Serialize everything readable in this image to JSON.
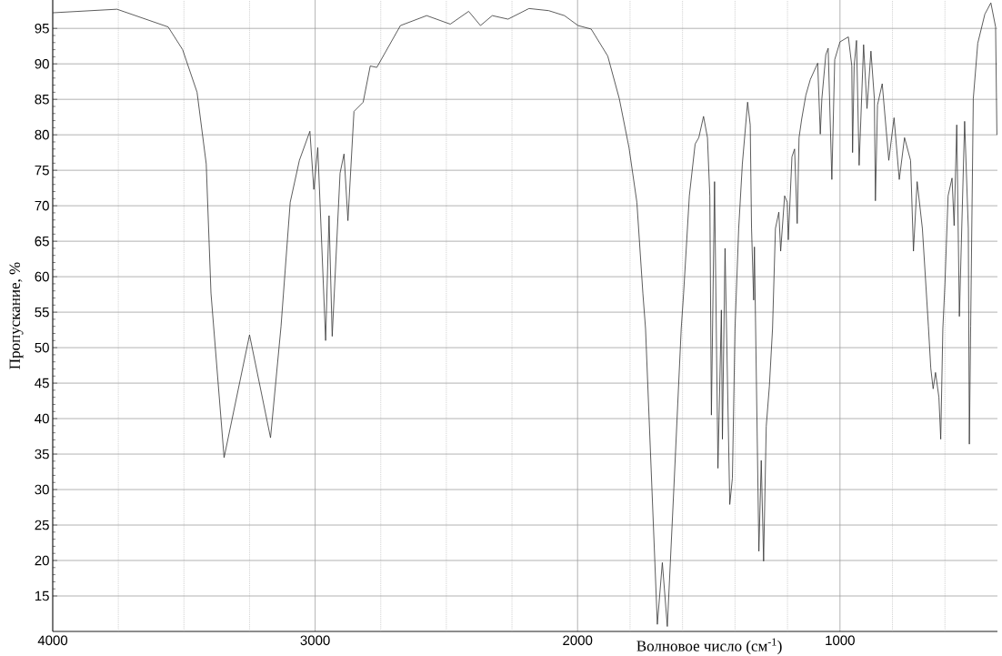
{
  "chart_data": {
    "type": "line",
    "xlabel": "Волновое число (см$^{-1}$)",
    "ylabel": "Пропускание, %",
    "xlim": [
      4000,
      400
    ],
    "ylim": [
      10,
      99
    ],
    "xticks": [
      4000,
      {
        "value": 3750,
        "label": null
      },
      {
        "value": 3500,
        "label": null
      },
      {
        "value": 3250,
        "label": null
      },
      3000,
      {
        "value": 2750,
        "label": null
      },
      {
        "value": 2500,
        "label": null
      },
      {
        "value": 2250,
        "label": null
      },
      2000,
      {
        "value": 1800,
        "label": null
      },
      {
        "value": 1600,
        "label": null
      },
      {
        "value": 1400,
        "label": null
      },
      {
        "value": 1200,
        "label": null
      },
      1000,
      {
        "value": 800,
        "label": null
      },
      {
        "value": 600,
        "label": null
      }
    ],
    "yticks": [
      15,
      20,
      25,
      30,
      35,
      40,
      45,
      50,
      55,
      60,
      65,
      70,
      75,
      80,
      85,
      90,
      95
    ],
    "grid": true,
    "color": "#333333",
    "x": [
      4000,
      3755,
      3560,
      3505,
      3450,
      3415,
      3397,
      3347,
      3250,
      3170,
      3130,
      3095,
      3060,
      3020,
      3005,
      2990,
      2960,
      2947,
      2935,
      2905,
      2890,
      2875,
      2852,
      2817,
      2790,
      2765,
      2675,
      2575,
      2485,
      2415,
      2370,
      2325,
      2265,
      2185,
      2110,
      2050,
      1998,
      1948,
      1885,
      1841,
      1804,
      1774,
      1751,
      1741,
      1696,
      1677,
      1658,
      1633,
      1605,
      1596,
      1574,
      1552,
      1538,
      1520,
      1505,
      1496,
      1490,
      1478,
      1465,
      1452,
      1448,
      1438,
      1420,
      1410,
      1400,
      1386,
      1372,
      1352,
      1342,
      1337,
      1329,
      1326,
      1309,
      1300,
      1291,
      1281,
      1269,
      1257,
      1246,
      1233,
      1226,
      1211,
      1201,
      1197,
      1183,
      1173,
      1163,
      1156,
      1146,
      1130,
      1113,
      1085,
      1075,
      1069,
      1054,
      1045,
      1031,
      1020,
      1000,
      968,
      955,
      952,
      946,
      937,
      927,
      910,
      897,
      882,
      869,
      865,
      857,
      839,
      814,
      794,
      774,
      754,
      731,
      720,
      706,
      686,
      663,
      654,
      645,
      636,
      623,
      616,
      608,
      600,
      588,
      573,
      565,
      555,
      545,
      525,
      511,
      507,
      502,
      492,
      475,
      448,
      425,
      407,
      402
    ],
    "values": [
      97.2,
      97.7,
      95.2,
      92.0,
      86.0,
      75.9,
      57.7,
      34.5,
      51.8,
      37.3,
      53.0,
      70.5,
      76.4,
      80.5,
      72.3,
      78.2,
      51.0,
      68.6,
      51.6,
      74.6,
      77.3,
      67.9,
      83.3,
      84.6,
      89.7,
      89.5,
      95.4,
      96.8,
      95.6,
      97.4,
      95.4,
      96.8,
      96.3,
      97.8,
      97.5,
      96.8,
      95.4,
      94.9,
      91.1,
      85.1,
      78.2,
      70.5,
      57.6,
      52.7,
      11.0,
      19.7,
      10.7,
      30.2,
      52.7,
      57.6,
      71.4,
      78.7,
      79.6,
      82.6,
      79.6,
      71.4,
      40.5,
      73.4,
      33.0,
      55.3,
      37.1,
      64.0,
      27.9,
      31.6,
      52.7,
      66.8,
      75.9,
      84.6,
      81.4,
      66.8,
      56.7,
      64.2,
      21.3,
      34.1,
      19.9,
      38.9,
      44.6,
      52.7,
      66.8,
      69.1,
      63.6,
      71.4,
      70.5,
      65.2,
      76.9,
      78.0,
      67.5,
      79.6,
      82.2,
      85.6,
      87.8,
      90.1,
      80.1,
      85.1,
      91.3,
      92.2,
      73.7,
      90.6,
      93.1,
      93.8,
      89.7,
      77.5,
      89.7,
      93.3,
      75.7,
      92.7,
      83.7,
      91.8,
      85.1,
      70.7,
      84.2,
      87.2,
      76.4,
      82.4,
      73.7,
      79.6,
      76.4,
      63.6,
      73.4,
      66.8,
      53.0,
      47.1,
      44.2,
      46.5,
      43.0,
      37.1,
      52.7,
      59.0,
      71.4,
      73.9,
      67.2,
      81.4,
      54.4,
      81.9,
      66.8,
      36.4,
      53.0,
      85.1,
      92.9,
      97.0,
      98.6,
      95.2,
      80.0
    ]
  }
}
